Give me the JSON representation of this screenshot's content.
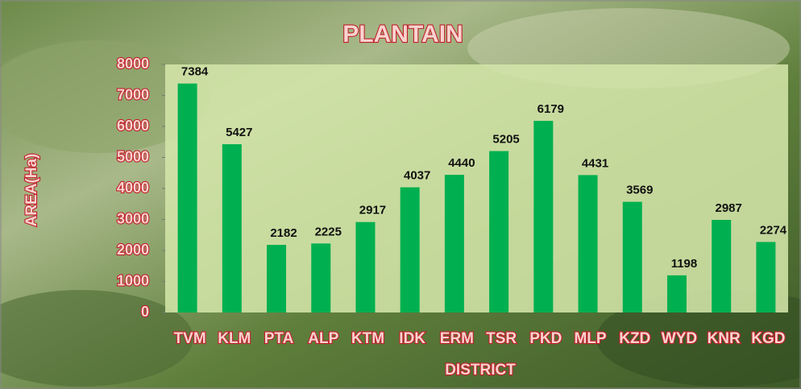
{
  "chart_data": {
    "type": "bar",
    "title": "PLANTAIN",
    "x_label": "DISTRICT",
    "y_label": "AREA(Ha)",
    "categories": [
      "TVM",
      "KLM",
      "PTA",
      "ALP",
      "KTM",
      "IDK",
      "ERM",
      "TSR",
      "PKD",
      "MLP",
      "KZD",
      "WYD",
      "KNR",
      "KGD"
    ],
    "values": [
      7384,
      5427,
      2182,
      2225,
      2917,
      4037,
      4440,
      5205,
      6179,
      4431,
      3569,
      1198,
      2987,
      2274
    ],
    "color": "#00b050",
    "ylim": [
      0,
      8000
    ],
    "yticks": [
      0,
      1000,
      2000,
      3000,
      4000,
      5000,
      6000,
      7000,
      8000
    ],
    "grid": false
  }
}
